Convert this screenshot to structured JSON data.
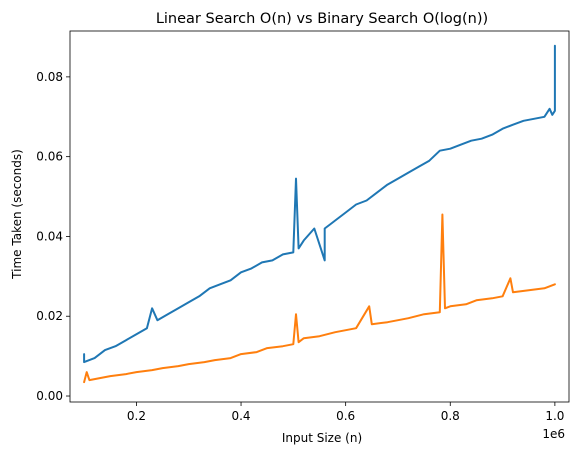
{
  "chart_data": {
    "type": "line",
    "title": "Linear Search O(n) vs Binary Search O(log(n))",
    "xlabel": "Input Size (n)",
    "ylabel": "Time Taken (seconds)",
    "x_offset_text": "1e6",
    "xlim": [
      0.073,
      1.027
    ],
    "ylim": [
      -0.0015,
      0.0915
    ],
    "x_ticks": [
      0.2,
      0.4,
      0.6,
      0.8,
      1.0
    ],
    "x_tick_labels": [
      "0.2",
      "0.4",
      "0.6",
      "0.8",
      "1.0"
    ],
    "y_ticks": [
      0.0,
      0.02,
      0.04,
      0.06,
      0.08
    ],
    "y_tick_labels": [
      "0.00",
      "0.02",
      "0.04",
      "0.06",
      "0.08"
    ],
    "grid": false,
    "legend": false,
    "series": [
      {
        "color": "#1f77b4",
        "x": [
          0.1,
          0.1,
          0.12,
          0.14,
          0.16,
          0.18,
          0.2,
          0.22,
          0.23,
          0.24,
          0.26,
          0.28,
          0.3,
          0.32,
          0.34,
          0.36,
          0.38,
          0.4,
          0.42,
          0.44,
          0.46,
          0.48,
          0.5,
          0.505,
          0.51,
          0.52,
          0.54,
          0.56,
          0.56,
          0.57,
          0.58,
          0.6,
          0.62,
          0.64,
          0.66,
          0.68,
          0.7,
          0.72,
          0.74,
          0.76,
          0.78,
          0.8,
          0.82,
          0.84,
          0.86,
          0.88,
          0.9,
          0.92,
          0.94,
          0.96,
          0.98,
          0.99,
          0.995,
          1.0,
          1.0
        ],
        "y": [
          0.0105,
          0.0085,
          0.0095,
          0.0115,
          0.0125,
          0.014,
          0.0155,
          0.017,
          0.022,
          0.019,
          0.0205,
          0.022,
          0.0235,
          0.025,
          0.027,
          0.028,
          0.029,
          0.031,
          0.032,
          0.0335,
          0.034,
          0.0355,
          0.036,
          0.0545,
          0.037,
          0.039,
          0.042,
          0.034,
          0.042,
          0.043,
          0.044,
          0.046,
          0.048,
          0.049,
          0.051,
          0.053,
          0.0545,
          0.056,
          0.0575,
          0.059,
          0.0615,
          0.062,
          0.063,
          0.064,
          0.0645,
          0.0655,
          0.067,
          0.068,
          0.069,
          0.0695,
          0.07,
          0.072,
          0.0705,
          0.0715,
          0.0878
        ]
      },
      {
        "color": "#ff7f0e",
        "x": [
          0.1,
          0.105,
          0.11,
          0.13,
          0.15,
          0.18,
          0.2,
          0.23,
          0.25,
          0.28,
          0.3,
          0.33,
          0.35,
          0.38,
          0.4,
          0.43,
          0.45,
          0.48,
          0.5,
          0.505,
          0.51,
          0.52,
          0.55,
          0.58,
          0.6,
          0.62,
          0.645,
          0.65,
          0.68,
          0.7,
          0.72,
          0.75,
          0.78,
          0.785,
          0.79,
          0.8,
          0.83,
          0.85,
          0.88,
          0.9,
          0.915,
          0.92,
          0.95,
          0.98,
          1.0
        ],
        "y": [
          0.0035,
          0.006,
          0.004,
          0.0045,
          0.005,
          0.0055,
          0.006,
          0.0065,
          0.007,
          0.0075,
          0.008,
          0.0085,
          0.009,
          0.0095,
          0.0105,
          0.011,
          0.012,
          0.0125,
          0.013,
          0.0205,
          0.0135,
          0.0145,
          0.015,
          0.016,
          0.0165,
          0.017,
          0.0225,
          0.018,
          0.0185,
          0.019,
          0.0195,
          0.0205,
          0.021,
          0.0455,
          0.022,
          0.0225,
          0.023,
          0.024,
          0.0245,
          0.025,
          0.0295,
          0.026,
          0.0265,
          0.027,
          0.028
        ]
      }
    ]
  }
}
